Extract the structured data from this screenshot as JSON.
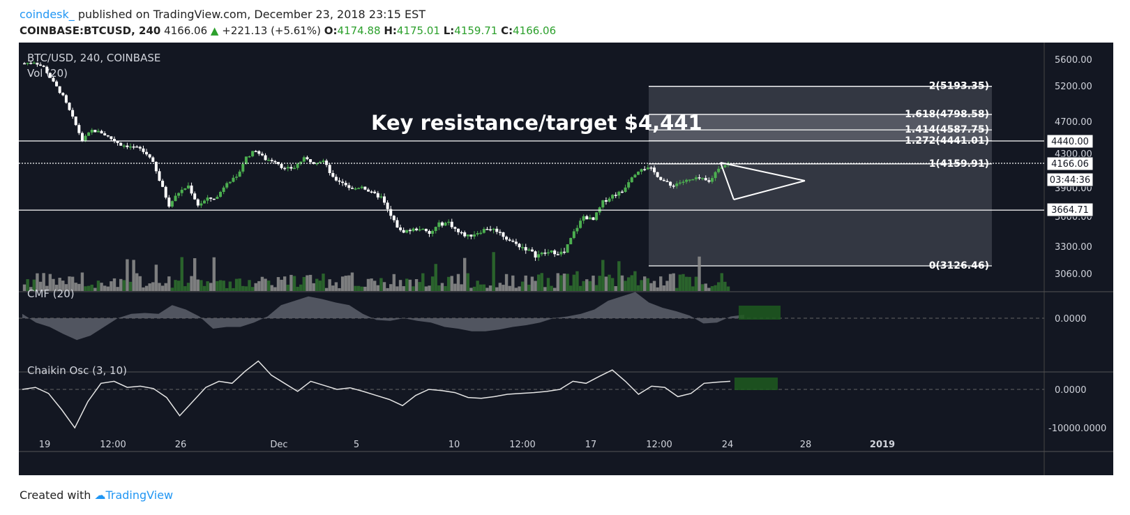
{
  "header": {
    "author": "coindesk_",
    "published": " published on TradingView.com, December 23, 2018 23:15 EST",
    "symbol": "COINBASE:BTCUSD, 240",
    "last": "4166.06",
    "change_arrow": "▲",
    "change": "+221.13 (+5.61%)",
    "o_label": "O:",
    "o_value": "4174.88",
    "h_label": "H:",
    "h_value": "4175.01",
    "l_label": "L:",
    "l_value": "4159.71",
    "c_label": "C:",
    "c_value": "4166.06"
  },
  "footer": {
    "created_with": "Created with",
    "brand": "TradingView"
  },
  "chart_data": [
    {
      "type": "candlestick",
      "title": "BTC/USD, 240, COINBASE",
      "volume_label": "Vol (20)",
      "annotation": "Key resistance/target $4,441",
      "y_ticks": [
        5600,
        5200,
        4700,
        4300,
        3900,
        3600,
        3300,
        3060
      ],
      "y_tick_labels": [
        "5600.00",
        "5200.00",
        "4700.00",
        "4300.00",
        "3900.00",
        "3600.00",
        "3300.00",
        "3060.00"
      ],
      "ylim": [
        3060,
        5700
      ],
      "x_tick_labels": [
        "19",
        "12:00",
        "26",
        "Dec",
        "5",
        "10",
        "12:00",
        "17",
        "12:00",
        "24",
        "28",
        "2019"
      ],
      "price_tags": [
        {
          "text": "4440.00",
          "value": 4440
        },
        {
          "text": "4166.06",
          "value": 4166.06
        },
        {
          "text": "03:44:36",
          "value": 4000
        },
        {
          "text": "3664.71",
          "value": 3664.71
        }
      ],
      "horizontal_lines": [
        4440,
        4166.06,
        3664.71
      ],
      "fibonacci_extension": [
        {
          "label": "2(5193.35)",
          "level": 2,
          "value": 5193.35
        },
        {
          "label": "1.618(4798.58)",
          "level": 1.618,
          "value": 4798.58
        },
        {
          "label": "1.414(4587.75)",
          "level": 1.414,
          "value": 4587.75
        },
        {
          "label": "1.272(4441.01)",
          "level": 1.272,
          "value": 4441.01
        },
        {
          "label": "1(4159.91)",
          "level": 1,
          "value": 4159.91
        },
        {
          "label": "0(3126.46)",
          "level": 0,
          "value": 3126.46
        }
      ],
      "price_path": [
        5540,
        5560,
        5480,
        5250,
        5050,
        4750,
        4450,
        4580,
        4550,
        4470,
        4400,
        4380,
        4350,
        4260,
        3980,
        3720,
        3850,
        3920,
        3720,
        3780,
        3800,
        3970,
        4000,
        4250,
        4340,
        4220,
        4200,
        4100,
        4120,
        4230,
        4180,
        4200,
        4000,
        3960,
        3880,
        3920,
        3840,
        3800,
        3600,
        3450,
        3460,
        3480,
        3420,
        3520,
        3540,
        3440,
        3400,
        3440,
        3480,
        3460,
        3380,
        3320,
        3280,
        3220,
        3240,
        3250,
        3240,
        3440,
        3600,
        3560,
        3750,
        3820,
        3860,
        4030,
        4120,
        4100,
        4000,
        3920,
        3960,
        3980,
        4000,
        3960,
        4120,
        4166
      ]
    },
    {
      "type": "area",
      "title": "CMF (20)",
      "y_tick_labels": [
        "0.0000"
      ],
      "values": [
        0.05,
        -0.05,
        -0.1,
        -0.18,
        -0.25,
        -0.2,
        -0.1,
        0,
        0.05,
        0.06,
        0.05,
        0.15,
        0.1,
        0.02,
        -0.12,
        -0.1,
        -0.1,
        -0.05,
        0.02,
        0.15,
        0.2,
        0.25,
        0.22,
        0.18,
        0.15,
        0.05,
        -0.02,
        -0.03,
        0,
        -0.03,
        -0.05,
        -0.1,
        -0.12,
        -0.15,
        -0.15,
        -0.13,
        -0.1,
        -0.08,
        -0.05,
        0,
        0.02,
        0.05,
        0.1,
        0.2,
        0.25,
        0.3,
        0.18,
        0.12,
        0.08,
        0.03,
        -0.06,
        -0.05,
        0.02,
        0.04
      ]
    },
    {
      "type": "line",
      "title": "Chaikin Osc (3, 10)",
      "y_tick_labels": [
        "0.0000",
        "-10000.0000"
      ],
      "values": [
        0,
        500,
        -1000,
        -5000,
        -9500,
        -3000,
        1500,
        2000,
        500,
        800,
        200,
        -2000,
        -6500,
        -3000,
        500,
        2000,
        1500,
        4500,
        7000,
        3500,
        1500,
        -500,
        2000,
        1000,
        0,
        400,
        -500,
        -1500,
        -2500,
        -4000,
        -1500,
        0,
        -300,
        -800,
        -2000,
        -2200,
        -1800,
        -1200,
        -1000,
        -800,
        -500,
        0,
        2000,
        1500,
        3200,
        4800,
        2000,
        -1200,
        800,
        500,
        -1800,
        -1000,
        1500,
        1800,
        2000
      ]
    }
  ]
}
